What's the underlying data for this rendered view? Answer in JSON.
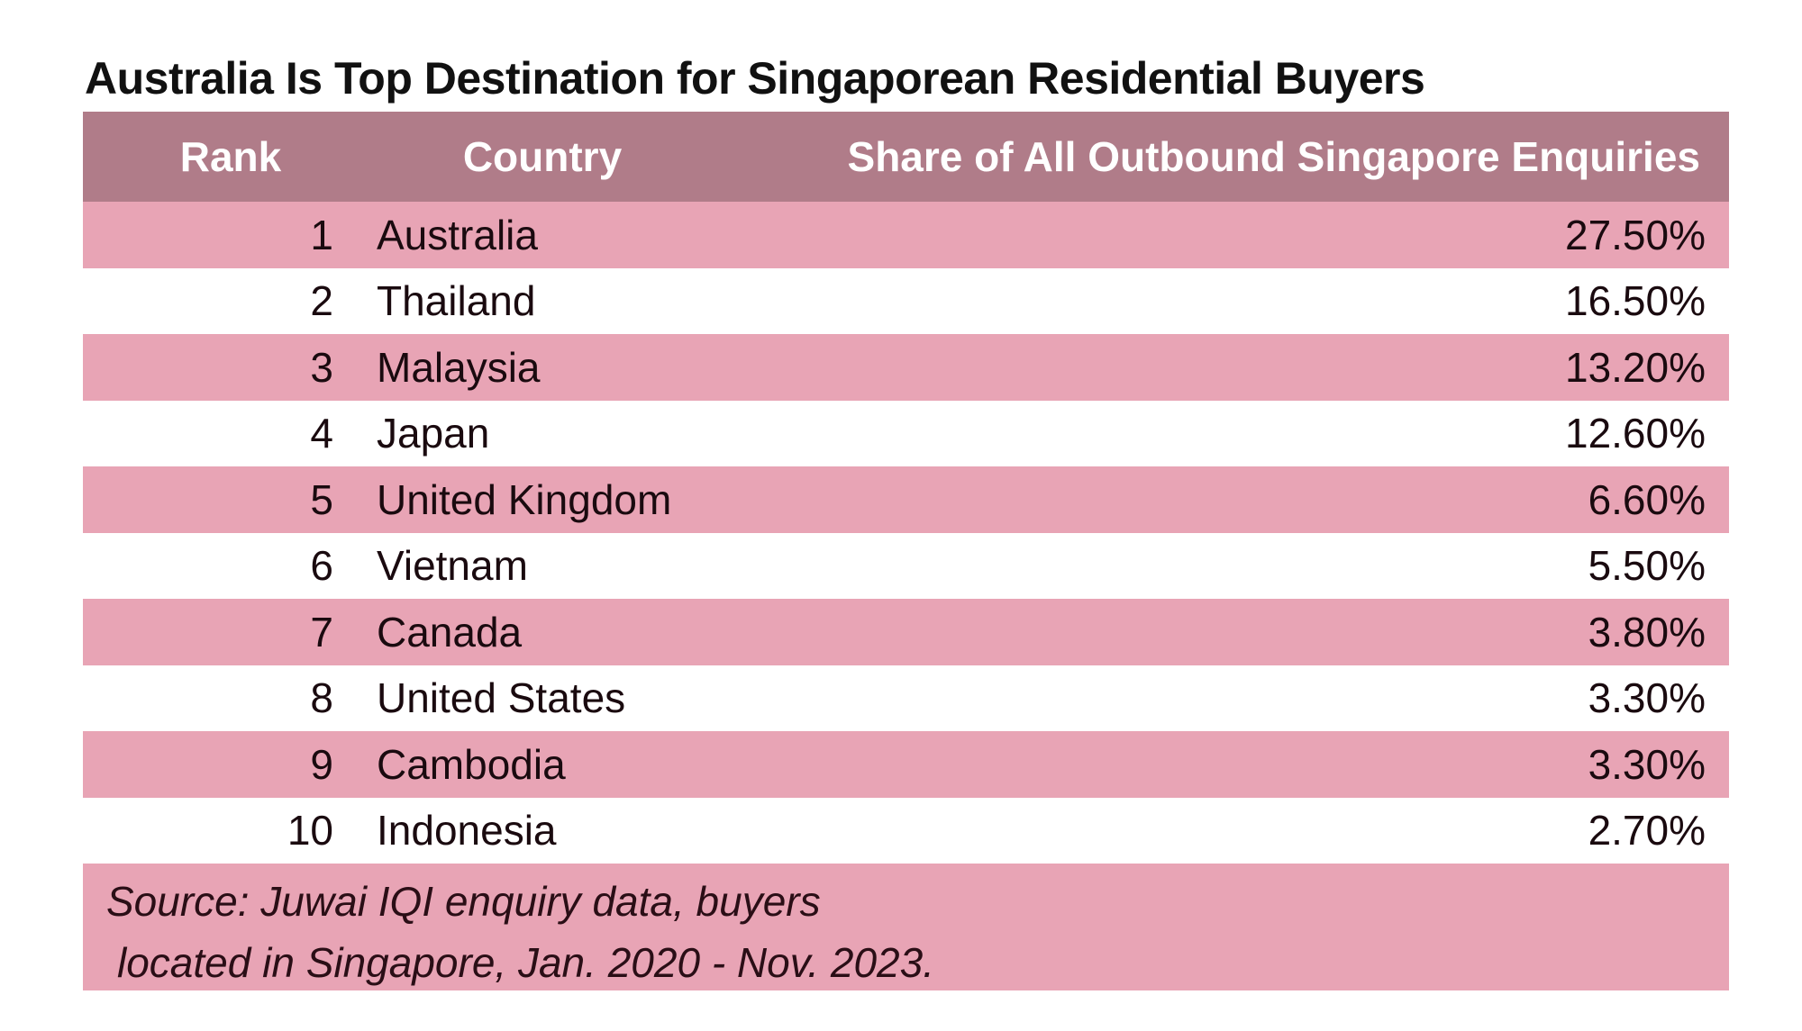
{
  "title": "Australia Is Top Destination for Singaporean Residential Buyers",
  "header": {
    "rank": "Rank",
    "country": "Country",
    "share": "Share of All Outbound Singapore Enquiries"
  },
  "rows": [
    {
      "rank": "1",
      "country": "Australia",
      "share": "27.50%"
    },
    {
      "rank": "2",
      "country": "Thailand",
      "share": "16.50%"
    },
    {
      "rank": "3",
      "country": "Malaysia",
      "share": "13.20%"
    },
    {
      "rank": "4",
      "country": "Japan",
      "share": "12.60%"
    },
    {
      "rank": "5",
      "country": "United Kingdom",
      "share": "6.60%"
    },
    {
      "rank": "6",
      "country": "Vietnam",
      "share": "5.50%"
    },
    {
      "rank": "7",
      "country": "Canada",
      "share": "3.80%"
    },
    {
      "rank": "8",
      "country": "United States",
      "share": "3.30%"
    },
    {
      "rank": "9",
      "country": "Cambodia",
      "share": "3.30%"
    },
    {
      "rank": "10",
      "country": "Indonesia",
      "share": "2.70%"
    }
  ],
  "source": {
    "line1": "Source: Juwai IQI enquiry data, buyers",
    "line2": "located in Singapore, Jan. 2020 - Nov. 2023."
  },
  "colors": {
    "header_bg": "#b07c89",
    "row_alt_bg": "#e8a4b5",
    "header_text": "#ffffff"
  },
  "chart_data": {
    "type": "table",
    "title": "Australia Is Top Destination for Singaporean Residential Buyers",
    "columns": [
      "Rank",
      "Country",
      "Share of All Outbound Singapore Enquiries"
    ],
    "categories": [
      "Australia",
      "Thailand",
      "Malaysia",
      "Japan",
      "United Kingdom",
      "Vietnam",
      "Canada",
      "United States",
      "Cambodia",
      "Indonesia"
    ],
    "values": [
      27.5,
      16.5,
      13.2,
      12.6,
      6.6,
      5.5,
      3.8,
      3.3,
      3.3,
      2.7
    ],
    "unit": "%",
    "annotations": [
      "Source: Juwai IQI enquiry data, buyers located in Singapore, Jan. 2020 - Nov. 2023."
    ]
  }
}
